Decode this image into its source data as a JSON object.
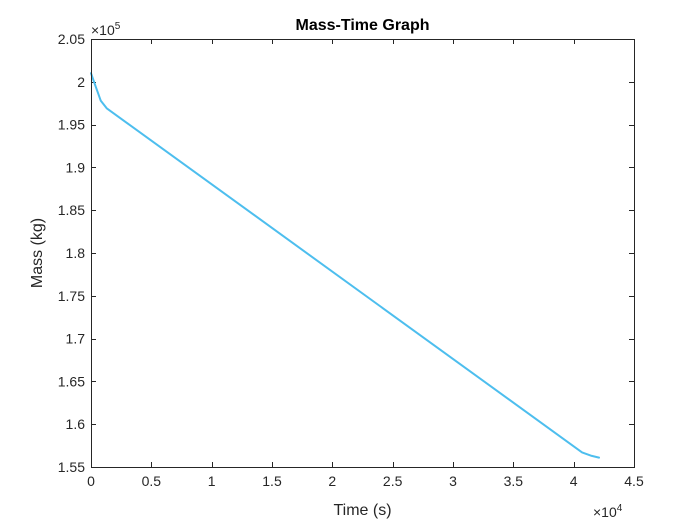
{
  "chart_data": {
    "type": "line",
    "title": "Mass-Time Graph",
    "xlabel": "Time (s)",
    "ylabel": "Mass (kg)",
    "xlim": [
      0,
      45000
    ],
    "ylim": [
      155000,
      205000
    ],
    "x_multiplier_label": "×10",
    "x_multiplier_exp": "4",
    "y_multiplier_label": "×10",
    "y_multiplier_exp": "5",
    "x_ticks": [
      0,
      5000,
      10000,
      15000,
      20000,
      25000,
      30000,
      35000,
      40000,
      45000
    ],
    "x_tick_labels": [
      "0",
      "0.5",
      "1",
      "1.5",
      "2",
      "2.5",
      "3",
      "3.5",
      "4",
      "4.5"
    ],
    "y_ticks": [
      155000,
      160000,
      165000,
      170000,
      175000,
      180000,
      185000,
      190000,
      195000,
      200000,
      205000
    ],
    "y_tick_labels": [
      "1.55",
      "1.6",
      "1.65",
      "1.7",
      "1.75",
      "1.8",
      "1.85",
      "1.9",
      "1.95",
      "2",
      "2.05"
    ],
    "grid": false,
    "box": true,
    "series": [
      {
        "color": "#4DBEEE",
        "x": [
          0,
          250,
          800,
          1300,
          40700,
          41500,
          42100
        ],
        "y": [
          201000,
          200000,
          197800,
          196900,
          156700,
          156300,
          156100
        ]
      }
    ]
  }
}
